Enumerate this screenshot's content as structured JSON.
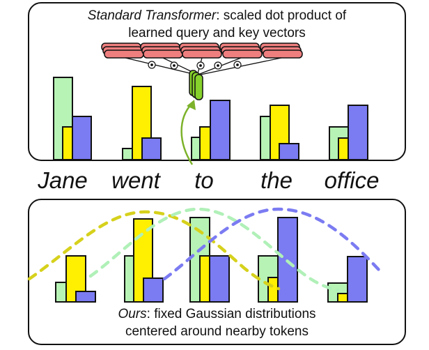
{
  "top_panel": {
    "caption_emph": "Standard Transformer",
    "caption_rest_line1": ": scaled dot product of",
    "caption_line2": "learned query and key vectors",
    "dot_symbol": "⊙"
  },
  "bottom_panel": {
    "caption_emph": "Ours",
    "caption_rest_line1": ": fixed Gaussian distributions",
    "caption_line2": "centered around nearby tokens"
  },
  "tokens": [
    "Jane",
    "went",
    "to",
    "the",
    "office"
  ],
  "colors": {
    "green": "#b7f3b4",
    "yellow": "#ffef00",
    "blue": "#7b7bf2",
    "red": "#ef7f7f",
    "arrow": "#7cb22a",
    "gauss_yellow": "#d6d11c",
    "gauss_green": "#b0f0b8",
    "gauss_blue": "#7b7bf2"
  }
}
